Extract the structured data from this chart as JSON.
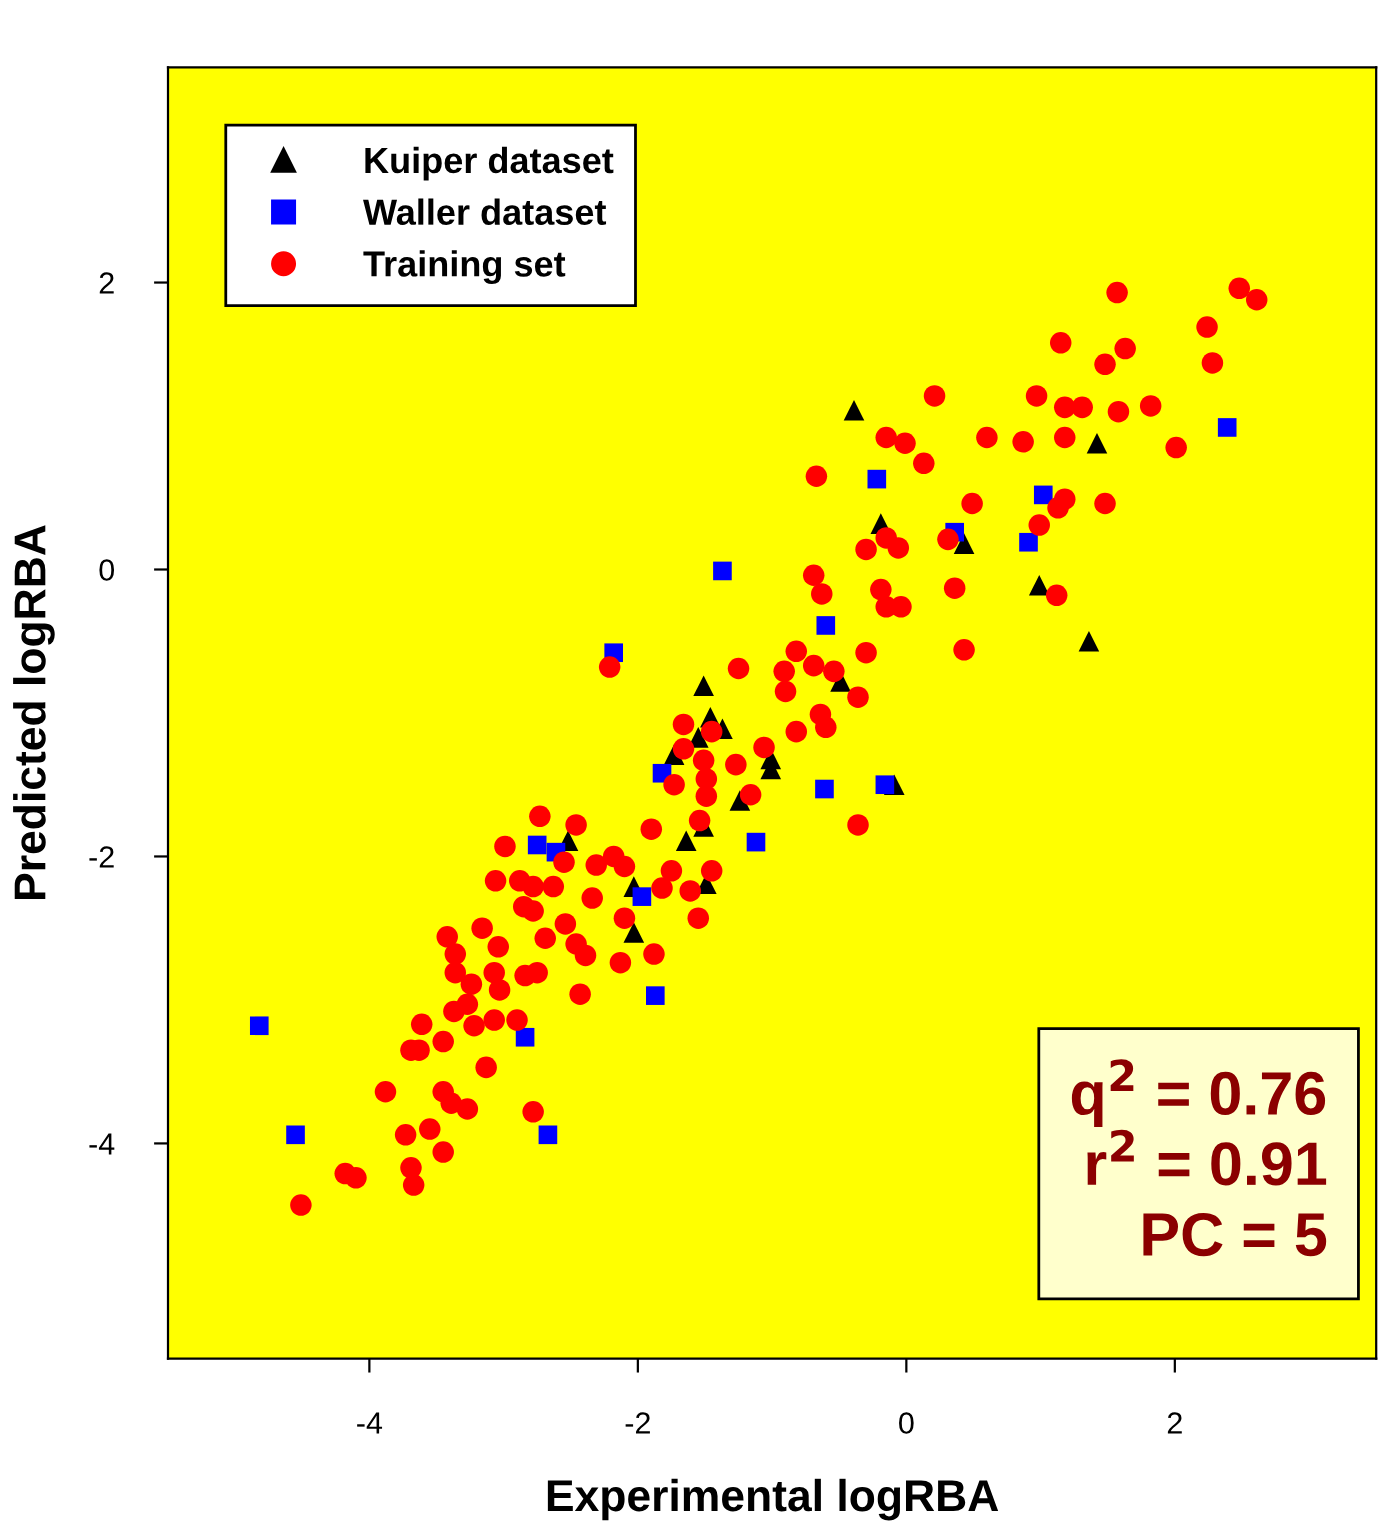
{
  "chart_data": {
    "type": "scatter",
    "xlabel": "Experimental logRBA",
    "ylabel": "Predicted logRBA",
    "xlim": [
      -5.5,
      3.5
    ],
    "ylim": [
      -5.5,
      3.5
    ],
    "xticks": [
      -4,
      -2,
      0,
      2
    ],
    "yticks": [
      -4,
      -2,
      0,
      2
    ],
    "grid": false,
    "legend": "top left",
    "annotations": [
      "q$^{2}$ = 0.76",
      "r$^{2}$ = 0.91",
      "PC = 5"
    ],
    "series": [
      {
        "name": "Kuiper dataset",
        "color": "#000000",
        "marker": "triangle",
        "x": [
          -0.39,
          -0.19,
          0.43,
          1.42,
          0.99,
          1.36,
          -0.49,
          -1.51,
          -1.46,
          -1.37,
          -1.55,
          -1.73,
          -1.01,
          -1.01,
          -1.24,
          -1.51,
          -1.64,
          -2.52,
          -0.09,
          -2.03,
          -2.03,
          -1.49
        ],
        "values": [
          1.11,
          0.32,
          0.18,
          0.88,
          -0.11,
          -0.5,
          -0.78,
          -0.81,
          -1.03,
          -1.11,
          -1.17,
          -1.29,
          -1.32,
          -1.39,
          -1.61,
          -1.79,
          -1.89,
          -1.89,
          -1.5,
          -2.21,
          -2.53,
          -2.19
        ]
      },
      {
        "name": "Waller dataset",
        "color": "#0000ff",
        "marker": "square",
        "x": [
          -4.82,
          -4.55,
          -2.84,
          -2.67,
          -2.75,
          -2.61,
          -2.18,
          -1.97,
          -1.87,
          -1.82,
          -1.37,
          -1.12,
          -0.61,
          -0.6,
          -0.22,
          -0.16,
          0.36,
          0.91,
          1.02,
          2.39
        ],
        "values": [
          -3.18,
          -3.94,
          -3.26,
          -3.94,
          -1.92,
          -1.97,
          -0.58,
          -2.28,
          -2.97,
          -1.42,
          -0.01,
          -1.9,
          -1.53,
          -0.39,
          0.63,
          -1.5,
          0.26,
          0.19,
          0.52,
          0.99
        ]
      },
      {
        "name": "Training set",
        "color": "#ff0000",
        "marker": "circle",
        "x": [
          1.57,
          2.48,
          2.61,
          2.24,
          2.28,
          1.15,
          1.63,
          1.48,
          0.21,
          0.97,
          1.18,
          1.31,
          1.58,
          1.82,
          2.01,
          -0.15,
          -0.01,
          0.13,
          0.6,
          0.87,
          1.18,
          -0.67,
          0.49,
          1.18,
          1.13,
          1.48,
          0.99,
          -0.3,
          -0.15,
          -0.06,
          0.31,
          -0.69,
          -0.63,
          -0.19,
          -0.15,
          -0.04,
          0.36,
          1.12,
          -0.3,
          0.43,
          -0.69,
          -0.54,
          -0.36,
          -0.82,
          -0.91,
          -0.9,
          -1.25,
          -0.64,
          -0.6,
          -0.82,
          -1.06,
          -1.27,
          -1.66,
          -1.45,
          -1.66,
          -1.51,
          -1.49,
          -1.49,
          -1.73,
          -1.16,
          -1.54,
          -1.9,
          -2.21,
          -0.36,
          -2.46,
          -2.73,
          -2.55,
          -2.31,
          -2.18,
          -2.1,
          -1.75,
          -1.45,
          -2.99,
          -1.82,
          -1.61,
          -1.55,
          -3.06,
          -2.88,
          -2.78,
          -2.63,
          -2.85,
          -2.78,
          -2.34,
          -2.1,
          -2.54,
          -1.88,
          -2.13,
          -2.39,
          -2.46,
          -2.69,
          -3.16,
          -3.42,
          -3.36,
          -3.04,
          -3.36,
          -3.07,
          -3.24,
          -3.03,
          -2.84,
          -2.75,
          -3.37,
          -3.27,
          -3.07,
          -3.22,
          -2.9,
          -2.43,
          -3.61,
          -3.69,
          -3.63,
          -3.45,
          -3.13,
          -3.88,
          -3.45,
          -3.39,
          -3.27,
          -2.78,
          -3.73,
          -3.55,
          -3.45,
          -3.69,
          -3.67,
          -4.18,
          -4.1,
          -4.51
        ],
        "values": [
          1.93,
          1.96,
          1.88,
          1.69,
          1.44,
          1.58,
          1.54,
          1.43,
          1.21,
          1.21,
          1.13,
          1.13,
          1.1,
          1.14,
          0.85,
          0.92,
          0.88,
          0.74,
          0.92,
          0.89,
          0.92,
          0.65,
          0.46,
          0.49,
          0.43,
          0.46,
          0.31,
          0.14,
          0.22,
          0.15,
          0.21,
          -0.04,
          -0.17,
          -0.14,
          -0.26,
          -0.26,
          -0.13,
          -0.18,
          -0.58,
          -0.56,
          -0.67,
          -0.71,
          -0.89,
          -0.57,
          -0.71,
          -0.85,
          -0.69,
          -1.01,
          -1.1,
          -1.13,
          -1.24,
          -1.36,
          -1.08,
          -1.13,
          -1.25,
          -1.33,
          -1.46,
          -1.58,
          -1.5,
          -1.57,
          -1.75,
          -1.81,
          -0.68,
          -1.78,
          -1.78,
          -1.72,
          -2.04,
          -2.06,
          -2.0,
          -2.07,
          -2.1,
          -2.1,
          -1.93,
          -2.22,
          -2.24,
          -2.43,
          -2.17,
          -2.17,
          -2.21,
          -2.21,
          -2.35,
          -2.38,
          -2.29,
          -2.43,
          -2.47,
          -2.68,
          -2.74,
          -2.69,
          -2.61,
          -2.57,
          -2.5,
          -2.56,
          -2.68,
          -2.63,
          -2.81,
          -2.81,
          -2.89,
          -2.93,
          -2.83,
          -2.81,
          -3.08,
          -3.03,
          -3.14,
          -3.18,
          -3.14,
          -2.96,
          -3.17,
          -3.35,
          -3.35,
          -3.29,
          -3.47,
          -3.64,
          -3.64,
          -3.72,
          -3.76,
          -3.78,
          -3.94,
          -3.9,
          -4.06,
          -4.17,
          -4.29,
          -4.21,
          -4.24,
          -4.43
        ]
      }
    ]
  }
}
